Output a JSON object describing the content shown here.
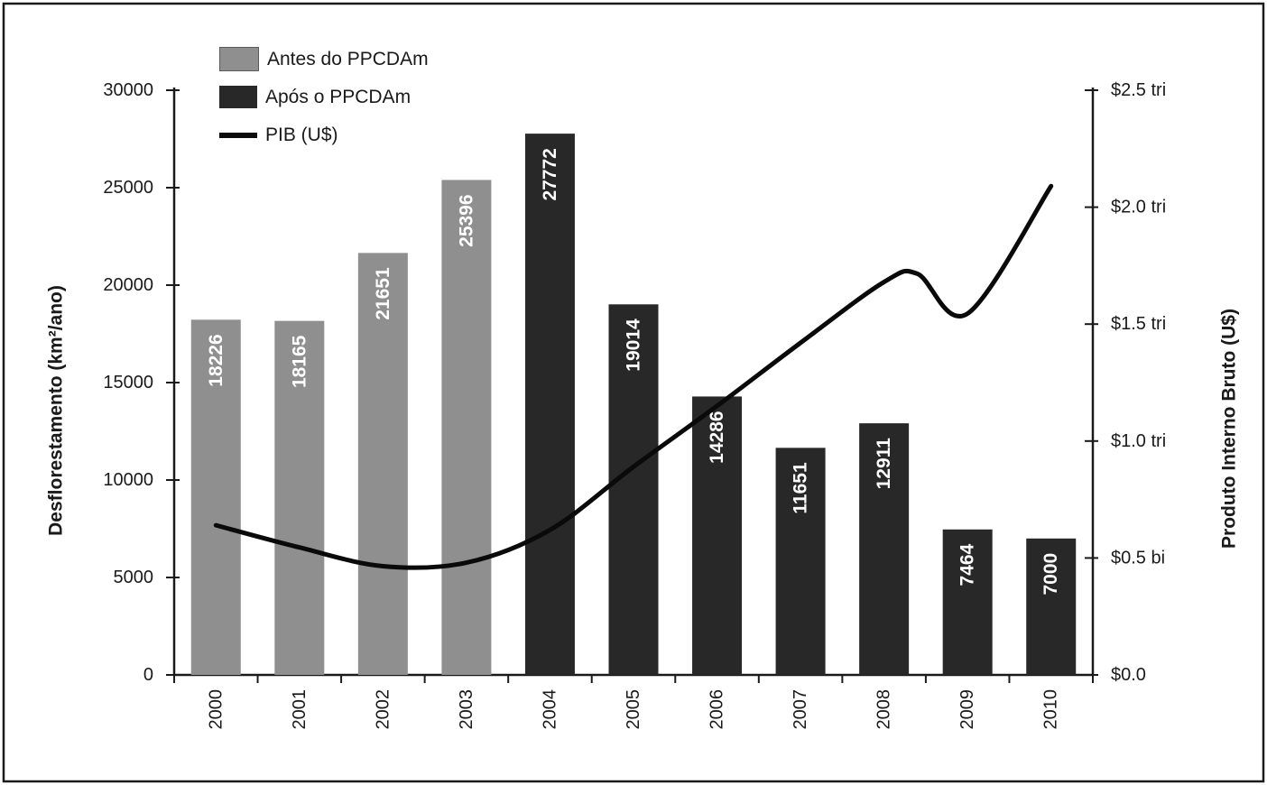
{
  "chart_data": {
    "type": "combo",
    "title": "",
    "categories": [
      "2000",
      "2001",
      "2002",
      "2003",
      "2004",
      "2005",
      "2006",
      "2007",
      "2008",
      "2009",
      "2010"
    ],
    "series": [
      {
        "name": "Antes do PPCDAm",
        "type": "bar",
        "axis": "left",
        "color": "#8f8f8f",
        "values": [
          18226,
          18165,
          21651,
          25396,
          null,
          null,
          null,
          null,
          null,
          null,
          null
        ]
      },
      {
        "name": "Após o PPCDAm",
        "type": "bar",
        "axis": "left",
        "color": "#282828",
        "values": [
          null,
          null,
          null,
          null,
          27772,
          19014,
          14286,
          11651,
          12911,
          7464,
          7000
        ]
      },
      {
        "name": "PIB (U$)",
        "type": "line",
        "axis": "right",
        "color": "#0a0a0a",
        "values": [
          0.64,
          0.545,
          0.465,
          0.48,
          0.62,
          0.89,
          1.15,
          1.42,
          1.68,
          1.545,
          2.09
        ],
        "shape_extra_points": [
          {
            "x": 2008.4,
            "y": 1.715
          }
        ]
      }
    ],
    "bar_value_labels": [
      "18226",
      "18165",
      "21651",
      "25396",
      "27772",
      "19014",
      "14286",
      "11651",
      "12911",
      "7464",
      "7000"
    ],
    "bar_value_label_color": "#ffffff",
    "left_axis": {
      "title": "Desflorestamento (km²/ano)",
      "min": 0,
      "max": 30000,
      "tick_step": 5000,
      "tick_labels": [
        "0",
        "5000",
        "10000",
        "15000",
        "20000",
        "25000",
        "30000"
      ]
    },
    "right_axis": {
      "title": "Produto Interno Bruto (U$)",
      "min": 0.0,
      "max": 2.5,
      "tick_step": 0.5,
      "tick_labels": [
        "$0.0",
        "$0.5 bi",
        "$1.0 tri",
        "$1.5 tri",
        "$2.0 tri",
        "$2.5 tri"
      ]
    },
    "legend_position": "top-left-inside",
    "grid": "off",
    "frame_color": "#1a1a1a"
  }
}
